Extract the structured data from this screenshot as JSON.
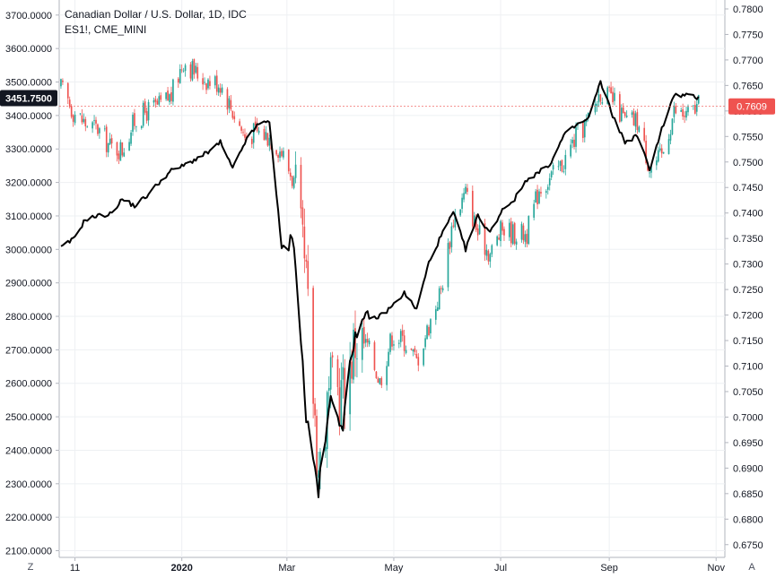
{
  "legend": {
    "symbol_title": "Canadian Dollar / U.S. Dollar, 1D, IDC",
    "overlay_symbol": "ES1!, CME_MINI"
  },
  "controls": {
    "left_corner": "Z",
    "right_corner": "A"
  },
  "colors": {
    "up": "#26a69a",
    "down": "#ef5350",
    "overlay": "#000000",
    "grid": "#eef0f3",
    "tag_left": "#131722",
    "tag_right": "#ef5350"
  },
  "chart_data": {
    "type": "candlestick+line",
    "x_ticks": [
      {
        "label": "11",
        "date": "2019-11-01",
        "bold": false
      },
      {
        "label": "2020",
        "date": "2020-01-01",
        "bold": true
      },
      {
        "label": "Mar",
        "date": "2020-03-01",
        "bold": false
      },
      {
        "label": "May",
        "date": "2020-05-01",
        "bold": false
      },
      {
        "label": "Jul",
        "date": "2020-07-01",
        "bold": false
      },
      {
        "label": "Sep",
        "date": "2020-09-01",
        "bold": false
      },
      {
        "label": "Nov",
        "date": "2020-11-01",
        "bold": false
      }
    ],
    "x_range": [
      "2019-10-23",
      "2020-11-06"
    ],
    "left_axis": {
      "ticks": [
        "2100.0000",
        "2200.0000",
        "2300.0000",
        "2400.0000",
        "2500.0000",
        "2600.0000",
        "2700.0000",
        "2800.0000",
        "2900.0000",
        "3000.0000",
        "3100.0000",
        "3200.0000",
        "3300.0000",
        "3400.0000",
        "3500.0000",
        "3600.0000",
        "3700.0000"
      ],
      "range": [
        2080,
        3745
      ],
      "current_label": "3451.7500",
      "current_value": 3451.75
    },
    "right_axis": {
      "ticks": [
        "0.6750",
        "0.6800",
        "0.6850",
        "0.6900",
        "0.6950",
        "0.7000",
        "0.7050",
        "0.7100",
        "0.7150",
        "0.7200",
        "0.7250",
        "0.7300",
        "0.7350",
        "0.7400",
        "0.7450",
        "0.7500",
        "0.7550",
        "0.7600",
        "0.7650",
        "0.7700",
        "0.7750",
        "0.7800"
      ],
      "range": [
        0.6725,
        0.78175
      ],
      "current_label": "0.7609",
      "current_value": 0.7609
    },
    "candle_series": {
      "name": "Canadian Dollar / U.S. Dollar",
      "axis": "right",
      "closes": [
        [
          "2019-10-24",
          0.7645
        ],
        [
          "2019-10-31",
          0.76
        ],
        [
          "2019-11-07",
          0.7575
        ],
        [
          "2019-11-14",
          0.7565
        ],
        [
          "2019-11-21",
          0.753
        ],
        [
          "2019-11-28",
          0.7525
        ],
        [
          "2019-12-05",
          0.758
        ],
        [
          "2019-12-12",
          0.76
        ],
        [
          "2019-12-19",
          0.761
        ],
        [
          "2019-12-26",
          0.763
        ],
        [
          "2020-01-02",
          0.77
        ],
        [
          "2020-01-09",
          0.7675
        ],
        [
          "2020-01-16",
          0.766
        ],
        [
          "2020-01-23",
          0.7655
        ],
        [
          "2020-01-30",
          0.76
        ],
        [
          "2020-02-06",
          0.755
        ],
        [
          "2020-02-13",
          0.756
        ],
        [
          "2020-02-20",
          0.755
        ],
        [
          "2020-02-27",
          0.752
        ],
        [
          "2020-03-05",
          0.746
        ],
        [
          "2020-03-12",
          0.725
        ],
        [
          "2020-03-19",
          0.69
        ],
        [
          "2020-03-26",
          0.705
        ],
        [
          "2020-04-02",
          0.705
        ],
        [
          "2020-04-09",
          0.715
        ],
        [
          "2020-04-16",
          0.714
        ],
        [
          "2020-04-23",
          0.707
        ],
        [
          "2020-04-30",
          0.716
        ],
        [
          "2020-05-07",
          0.715
        ],
        [
          "2020-05-14",
          0.711
        ],
        [
          "2020-05-21",
          0.718
        ],
        [
          "2020-05-28",
          0.725
        ],
        [
          "2020-06-04",
          0.739
        ],
        [
          "2020-06-11",
          0.744
        ],
        [
          "2020-06-18",
          0.736
        ],
        [
          "2020-06-25",
          0.732
        ],
        [
          "2020-07-02",
          0.737
        ],
        [
          "2020-07-09",
          0.736
        ],
        [
          "2020-07-16",
          0.736
        ],
        [
          "2020-07-23",
          0.745
        ],
        [
          "2020-07-30",
          0.747
        ],
        [
          "2020-08-06",
          0.75
        ],
        [
          "2020-08-13",
          0.755
        ],
        [
          "2020-08-20",
          0.758
        ],
        [
          "2020-08-27",
          0.764
        ],
        [
          "2020-09-03",
          0.762
        ],
        [
          "2020-09-10",
          0.758
        ],
        [
          "2020-09-17",
          0.758
        ],
        [
          "2020-09-24",
          0.749
        ],
        [
          "2020-10-01",
          0.751
        ],
        [
          "2020-10-08",
          0.76
        ],
        [
          "2020-10-15",
          0.759
        ],
        [
          "2020-10-22",
          0.7609
        ]
      ],
      "week_range": {
        "high": 0.772,
        "low": 0.682
      }
    },
    "line_series": {
      "name": "ES1!",
      "axis": "left",
      "values": [
        [
          "2019-10-24",
          3005
        ],
        [
          "2019-10-31",
          3030
        ],
        [
          "2019-11-07",
          3090
        ],
        [
          "2019-11-14",
          3100
        ],
        [
          "2019-11-21",
          3105
        ],
        [
          "2019-11-28",
          3150
        ],
        [
          "2019-12-05",
          3130
        ],
        [
          "2019-12-12",
          3160
        ],
        [
          "2019-12-19",
          3200
        ],
        [
          "2019-12-26",
          3235
        ],
        [
          "2020-01-02",
          3250
        ],
        [
          "2020-01-09",
          3270
        ],
        [
          "2020-01-16",
          3290
        ],
        [
          "2020-01-23",
          3320
        ],
        [
          "2020-01-30",
          3240
        ],
        [
          "2020-02-06",
          3320
        ],
        [
          "2020-02-13",
          3370
        ],
        [
          "2020-02-20",
          3385
        ],
        [
          "2020-02-27",
          3000
        ],
        [
          "2020-03-05",
          3030
        ],
        [
          "2020-03-12",
          2500
        ],
        [
          "2020-03-19",
          2280
        ],
        [
          "2020-03-26",
          2550
        ],
        [
          "2020-04-02",
          2480
        ],
        [
          "2020-04-09",
          2760
        ],
        [
          "2020-04-16",
          2790
        ],
        [
          "2020-04-23",
          2800
        ],
        [
          "2020-04-30",
          2830
        ],
        [
          "2020-05-07",
          2870
        ],
        [
          "2020-05-14",
          2820
        ],
        [
          "2020-05-21",
          2960
        ],
        [
          "2020-05-28",
          3040
        ],
        [
          "2020-06-04",
          3110
        ],
        [
          "2020-06-11",
          3000
        ],
        [
          "2020-06-18",
          3100
        ],
        [
          "2020-06-25",
          3050
        ],
        [
          "2020-07-02",
          3120
        ],
        [
          "2020-07-09",
          3150
        ],
        [
          "2020-07-16",
          3210
        ],
        [
          "2020-07-23",
          3230
        ],
        [
          "2020-07-30",
          3260
        ],
        [
          "2020-08-06",
          3340
        ],
        [
          "2020-08-13",
          3370
        ],
        [
          "2020-08-20",
          3390
        ],
        [
          "2020-08-27",
          3500
        ],
        [
          "2020-09-03",
          3400
        ],
        [
          "2020-09-10",
          3320
        ],
        [
          "2020-09-17",
          3340
        ],
        [
          "2020-09-24",
          3240
        ],
        [
          "2020-10-01",
          3360
        ],
        [
          "2020-10-08",
          3460
        ],
        [
          "2020-10-15",
          3460
        ],
        [
          "2020-10-22",
          3451.75
        ]
      ]
    }
  }
}
